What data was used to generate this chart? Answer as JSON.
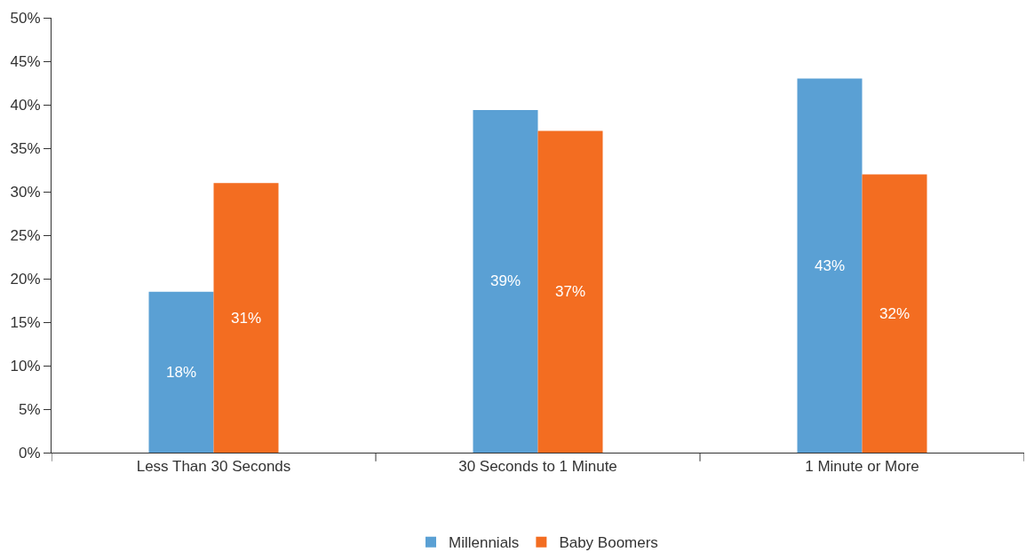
{
  "chart_data": {
    "type": "bar",
    "categories": [
      "Less Than 30 Seconds",
      "30 Seconds to 1 Minute",
      "1 Minute or More"
    ],
    "series": [
      {
        "name": "Millennials",
        "color": "#5aa0d4",
        "values": [
          18.5,
          39.4,
          43
        ],
        "value_labels": [
          "18%",
          "39%",
          "43%"
        ]
      },
      {
        "name": "Baby Boomers",
        "color": "#f36d21",
        "values": [
          31,
          37,
          32
        ],
        "value_labels": [
          "31%",
          "37%",
          "32%"
        ]
      }
    ],
    "ylim": [
      0,
      50
    ],
    "yticks": [
      {
        "value": 0,
        "label": "0%"
      },
      {
        "value": 5,
        "label": "5%"
      },
      {
        "value": 10,
        "label": "10%"
      },
      {
        "value": 15,
        "label": "15%"
      },
      {
        "value": 20,
        "label": "20%"
      },
      {
        "value": 25,
        "label": "25%"
      },
      {
        "value": 30,
        "label": "30%"
      },
      {
        "value": 35,
        "label": "35%"
      },
      {
        "value": 40,
        "label": "40%"
      },
      {
        "value": 45,
        "label": "45%"
      },
      {
        "value": 50,
        "label": "50%"
      }
    ],
    "grid": false,
    "legend": "bottom"
  }
}
